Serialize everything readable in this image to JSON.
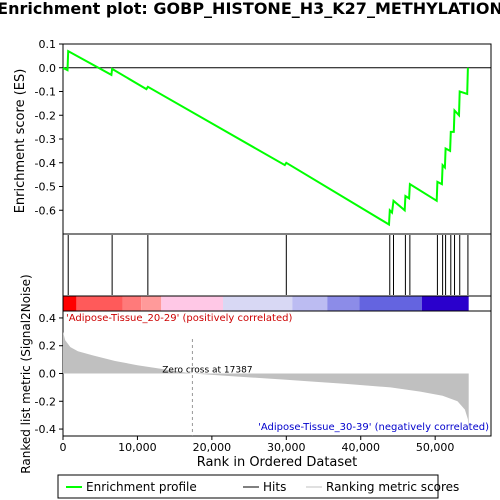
{
  "chart_data": {
    "type": "line",
    "title": "Enrichment plot: GOBP_HISTONE_H3_K27_METHYLATION",
    "es_panel": {
      "ylabel": "Enrichment score (ES)",
      "ylim": [
        -0.7,
        0.1
      ],
      "yticks": [
        0.1,
        0.0,
        -0.1,
        -0.2,
        -0.3,
        -0.4,
        -0.5,
        -0.6
      ],
      "ytick_labels": [
        "0.1",
        "0.0",
        "-0.1",
        "-0.2",
        "-0.3",
        "-0.4",
        "-0.5",
        "-0.6"
      ],
      "series": [
        {
          "name": "Enrichment profile",
          "color": "#00ff00",
          "points": [
            [
              0,
              0.0
            ],
            [
              600,
              -0.01
            ],
            [
              700,
              0.07
            ],
            [
              6500,
              -0.03
            ],
            [
              6600,
              -0.005
            ],
            [
              11200,
              -0.09
            ],
            [
              11400,
              -0.08
            ],
            [
              29800,
              -0.41
            ],
            [
              30000,
              -0.4
            ],
            [
              43800,
              -0.66
            ],
            [
              43900,
              -0.6
            ],
            [
              44200,
              -0.61
            ],
            [
              44400,
              -0.56
            ],
            [
              45900,
              -0.6
            ],
            [
              46000,
              -0.54
            ],
            [
              46500,
              -0.55
            ],
            [
              46600,
              -0.49
            ],
            [
              50200,
              -0.56
            ],
            [
              50300,
              -0.48
            ],
            [
              50900,
              -0.49
            ],
            [
              51000,
              -0.41
            ],
            [
              51300,
              -0.42
            ],
            [
              51400,
              -0.34
            ],
            [
              52000,
              -0.35
            ],
            [
              52100,
              -0.27
            ],
            [
              52500,
              -0.27
            ],
            [
              52600,
              -0.18
            ],
            [
              53200,
              -0.2
            ],
            [
              53300,
              -0.1
            ],
            [
              54300,
              -0.11
            ],
            [
              54400,
              0.0
            ]
          ]
        }
      ]
    },
    "hits": [
      700,
      6600,
      11400,
      30000,
      43900,
      44400,
      46000,
      46600,
      50300,
      51000,
      51400,
      52100,
      52600,
      53300,
      54400
    ],
    "heatmap": {
      "segments": [
        {
          "x0": 0,
          "x1": 1800,
          "color": "#ff0000"
        },
        {
          "x0": 1800,
          "x1": 8000,
          "color": "#ff5a5a"
        },
        {
          "x0": 8000,
          "x1": 10500,
          "color": "#ff7a7a"
        },
        {
          "x0": 10500,
          "x1": 13200,
          "color": "#ff9a9a"
        },
        {
          "x0": 13200,
          "x1": 21500,
          "color": "#ffc8e6"
        },
        {
          "x0": 21500,
          "x1": 30800,
          "color": "#d8d8f4"
        },
        {
          "x0": 30800,
          "x1": 35500,
          "color": "#bcbcf2"
        },
        {
          "x0": 35500,
          "x1": 39800,
          "color": "#8c8ce8"
        },
        {
          "x0": 39800,
          "x1": 48200,
          "color": "#6464e0"
        },
        {
          "x0": 48200,
          "x1": 54500,
          "color": "#2a00cc"
        }
      ],
      "positive_label": "'Adipose-Tissue_20-29' (positively correlated)",
      "negative_label": "'Adipose-Tissue_30-39' (negatively correlated)"
    },
    "metric_panel": {
      "ylabel": "Ranked list metric (Signal2Noise)",
      "ylim": [
        -0.45,
        0.45
      ],
      "yticks": [
        0.4,
        0.2,
        0.0,
        -0.2,
        -0.4
      ],
      "ytick_labels": [
        "0.4",
        "0.2",
        "0.0",
        "-0.2",
        "-0.4"
      ],
      "zero_cross": 17387,
      "zero_cross_label": "Zero cross at 17387",
      "profile": [
        [
          0,
          0.3
        ],
        [
          300,
          0.24
        ],
        [
          1000,
          0.19
        ],
        [
          2000,
          0.16
        ],
        [
          4000,
          0.13
        ],
        [
          7000,
          0.09
        ],
        [
          10000,
          0.06
        ],
        [
          13000,
          0.035
        ],
        [
          15000,
          0.018
        ],
        [
          17387,
          0.0
        ],
        [
          22000,
          -0.017
        ],
        [
          30000,
          -0.045
        ],
        [
          38000,
          -0.075
        ],
        [
          44000,
          -0.1
        ],
        [
          48000,
          -0.13
        ],
        [
          51000,
          -0.16
        ],
        [
          53000,
          -0.2
        ],
        [
          54000,
          -0.26
        ],
        [
          54400,
          -0.33
        ],
        [
          54500,
          -0.42
        ]
      ]
    },
    "x_axis": {
      "label": "Rank in Ordered Dataset",
      "xlim": [
        0,
        57500
      ],
      "ticks": [
        0,
        10000,
        20000,
        30000,
        40000,
        50000
      ],
      "tick_labels": [
        "0",
        "10,000",
        "20,000",
        "30,000",
        "40,000",
        "50,000"
      ]
    },
    "legend": {
      "position": "bottom",
      "items": [
        {
          "label": "Enrichment profile",
          "color": "#00ff00"
        },
        {
          "label": "Hits",
          "color": "#000000"
        },
        {
          "label": "Ranking metric scores",
          "color": "#c0c0c0"
        }
      ]
    }
  }
}
